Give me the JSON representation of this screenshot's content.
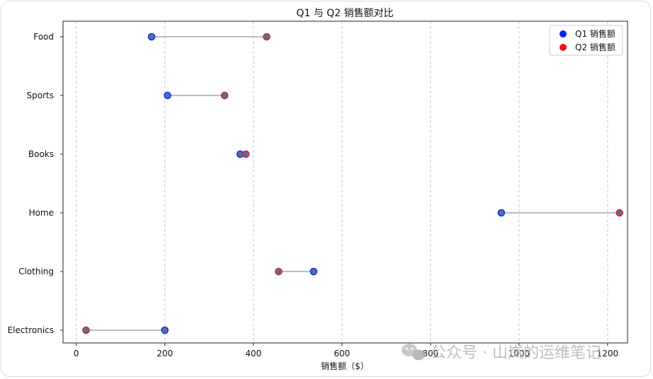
{
  "chart_data": {
    "type": "scatter",
    "title": "Q1 与 Q2 销售额对比",
    "xlabel": "销售额（$）",
    "ylabel": "",
    "xlim": [
      -30,
      1245
    ],
    "x_ticks": [
      0,
      200,
      400,
      600,
      800,
      1000,
      1200
    ],
    "grid": "x-dashed",
    "legend_placement": "top-right",
    "categories": [
      "Food",
      "Sports",
      "Books",
      "Home",
      "Clothing",
      "Electronics"
    ],
    "series": [
      {
        "name": "Q1 销售额",
        "color": "#0022ee",
        "values": [
          170,
          206,
          370,
          960,
          536,
          200
        ]
      },
      {
        "name": "Q2 销售额",
        "color": "#ee1111",
        "values": [
          430,
          335,
          383,
          1227,
          457,
          22
        ]
      }
    ],
    "point_color": "#5a6ea0",
    "connector_color": "#a8a8a8"
  },
  "watermark": {
    "icon": "wechat-icon",
    "text": "公众号 · 山岚的运维笔记"
  }
}
